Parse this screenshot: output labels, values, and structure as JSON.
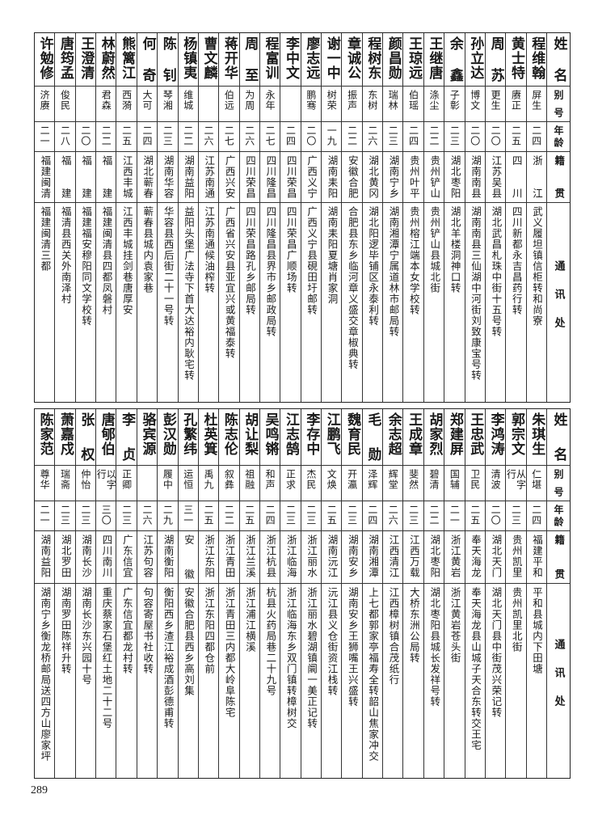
{
  "headers": {
    "name": "姓名",
    "alias": "别号",
    "age": "年龄",
    "origin": "籍贯",
    "address": "通讯处"
  },
  "top_rows": [
    {
      "name": "程维翰",
      "alias": "屏生",
      "age": "二四",
      "origin": "浙江",
      "address": "武义履坦镇信柜转和尚寮"
    },
    {
      "name": "黄士特",
      "alias": "赓正",
      "age": "二五",
      "origin": "四川",
      "address": "四川新都永吉昌药行转"
    },
    {
      "name": "周苏",
      "alias": "更生",
      "age": "二〇",
      "origin": "江苏吴县",
      "address": "湖北武昌札珠中街十五号转"
    },
    {
      "name": "孙立达",
      "alias": "博文",
      "age": "二〇",
      "origin": "湖南南县",
      "address": "湖南南县三仙湖中河街刘致康宝号转"
    },
    {
      "name": "余鑫",
      "alias": "子彰",
      "age": "二三",
      "origin": "湖北枣阳",
      "address": "湖北羊楼洞神口转"
    },
    {
      "name": "王继唐",
      "alias": "涤尘",
      "age": "二二",
      "origin": "贵州铲山",
      "address": "贵州铲山县城北街"
    },
    {
      "name": "王琼远",
      "alias": "伯瑶",
      "age": "二四",
      "origin": "贵州叶平",
      "address": "贵州榕江端本女学校转"
    },
    {
      "name": "颜昌勋",
      "alias": "瑞林",
      "age": "二三",
      "origin": "湖南宁乡",
      "address": "湖南湘潭宁属道林市邮局转"
    },
    {
      "name": "程树东",
      "alias": "东树",
      "age": "二六",
      "origin": "湖北黄冈",
      "address": "湖北阳逻毕铺区永泰利转"
    },
    {
      "name": "章诚公",
      "alias": "振声",
      "age": "二二",
      "origin": "安徽合肥",
      "address": "合肥县东乡临河章义盛交章椒典转"
    },
    {
      "name": "谢一中",
      "alias": "树荣",
      "age": "一九",
      "origin": "湖南耒阳",
      "address": "湖南耒阳夏塘肖家洞"
    },
    {
      "name": "廖志远",
      "alias": "鹏骞",
      "age": "二〇",
      "origin": "广西义宁",
      "address": "广西义宁县硯田圩邮转"
    },
    {
      "name": "李中文",
      "alias": "",
      "age": "二四",
      "origin": "四川荣昌",
      "address": "四川荣昌广顺场转"
    },
    {
      "name": "程富训",
      "alias": "永年",
      "age": "二七",
      "origin": "四川隆昌",
      "address": "四川隆昌县界市乡邮政局转"
    },
    {
      "name": "周至",
      "alias": "为周",
      "age": "二六",
      "origin": "四川荣昌",
      "address": "四川荣昌路孔乡邮局转"
    },
    {
      "name": "蒋开华",
      "alias": "伯远",
      "age": "二七",
      "origin": "广西兴安",
      "address": "广西省兴安县亚宜兴或黄福泰转"
    },
    {
      "name": "曹文麟",
      "alias": "",
      "age": "二六",
      "origin": "江苏南通",
      "address": "江苏南通候油榨转"
    },
    {
      "name": "杨镇夷",
      "alias": "维城",
      "age": "二二",
      "origin": "湖南益阳",
      "address": "益阳头堡广法寺下首大达裕内耿宅转"
    },
    {
      "name": "陈钊",
      "alias": "琴湘",
      "age": "二三",
      "origin": "湖南华容",
      "address": "华容县西后街二十一号转"
    },
    {
      "name": "何奇",
      "alias": "大可",
      "age": "二四",
      "origin": "湖北蕲春",
      "address": "蕲春县城内袁家巷"
    },
    {
      "name": "熊篱江",
      "alias": "西漪",
      "age": "二五",
      "origin": "江西丰城",
      "address": "江西丰城挂剑巷唐厚安"
    },
    {
      "name": "林蔚然",
      "alias": "君森",
      "age": "二二",
      "origin": "福建",
      "address": "福建闽清县四都凤磐村"
    },
    {
      "name": "王澄清",
      "alias": "",
      "age": "二〇",
      "origin": "福建",
      "address": "福建福安穆阳同文学校转"
    },
    {
      "name": "唐筠孟",
      "alias": "俊民",
      "age": "二八",
      "origin": "福建",
      "address": "福清县西关外南泽村"
    },
    {
      "name": "许勉修",
      "alias": "济赓",
      "age": "二一",
      "origin": "福建闽清",
      "address": "福建闽清三都"
    }
  ],
  "bottom_rows": [
    {
      "name": "朱琪生",
      "alias": "仁堪",
      "age": "二四",
      "origin": "福建平和",
      "address": "平和县城内下田塘"
    },
    {
      "name": "郭宗文",
      "alias": "从字行",
      "age": "二三",
      "origin": "贵州凯里",
      "address": "贵州凯里北街"
    },
    {
      "name": "李鸿涛",
      "alias": "清波",
      "age": "二〇",
      "origin": "湖北天门",
      "address": "湖北天门县中街茂兴荣记转"
    },
    {
      "name": "王忠武",
      "alias": "卫民",
      "age": "二五",
      "origin": "奉天海龙",
      "address": "奉天海龙县山城子天合东转交王宅"
    },
    {
      "name": "郑建屏",
      "alias": "国辅",
      "age": "二一",
      "origin": "浙江黄岩",
      "address": "浙江黄岩苍头街"
    },
    {
      "name": "胡家烈",
      "alias": "碧清",
      "age": "二二",
      "origin": "湖北枣阳",
      "address": "湖北枣阳县城长发祥号转"
    },
    {
      "name": "王成章",
      "alias": "斐然",
      "age": "二三",
      "origin": "江西万载",
      "address": "大桥东洲公局转"
    },
    {
      "name": "余志超",
      "alias": "辉堂",
      "age": "二六",
      "origin": "江西清江",
      "address": "江西樟树镇合茂纸行"
    },
    {
      "name": "毛勋",
      "alias": "泽辉",
      "age": "二四",
      "origin": "湖南湘潭",
      "address": "上七都郭家亭福寿全转韶山焦家冲交"
    },
    {
      "name": "魏育民",
      "alias": "开瀛",
      "age": "二三",
      "origin": "湖南安乡",
      "address": "湖南安乡王狮嘴王兴盛转"
    },
    {
      "name": "江鹏飞",
      "alias": "文焕",
      "age": "二五",
      "origin": "湖南沅江",
      "address": "沅江县义仓街资江栈转"
    },
    {
      "name": "李存中",
      "alias": "杰民",
      "age": "二三",
      "origin": "浙江丽水",
      "address": "浙江丽水碧湖镇阛一美正记转"
    },
    {
      "name": "江志鹄",
      "alias": "正求",
      "age": "二三",
      "origin": "浙江临海",
      "address": "浙江临海东乡双门镇转樟树交"
    },
    {
      "name": "吴鸣锵",
      "alias": "和声",
      "age": "二四",
      "origin": "浙江杭县",
      "address": "杭县火药局巷二十九号"
    },
    {
      "name": "胡让梨",
      "alias": "祖融",
      "age": "二五",
      "origin": "浙江兰溪",
      "address": "浙江浦江横溪"
    },
    {
      "name": "陈志伦",
      "alias": "叙彝",
      "age": "二二",
      "origin": "浙江青田",
      "address": "浙江青田三内都大岭阜陈宅"
    },
    {
      "name": "杜英箕",
      "alias": "禹九",
      "age": "二五",
      "origin": "浙江东阳",
      "address": "浙江东阳四都仓前"
    },
    {
      "name": "孔繁纬",
      "alias": "运恒",
      "age": "三一",
      "origin": "安徽",
      "address": "安徽合肥县西乡高刘集"
    },
    {
      "name": "彭汉勋",
      "alias": "履中",
      "age": "二九",
      "origin": "湖南衡阳",
      "address": "衡阳西乡渣江裕成酒彭德甫转"
    },
    {
      "name": "骆宾源",
      "alias": "",
      "age": "二六",
      "origin": "江苏句容",
      "address": "句容寄屋书社收转"
    },
    {
      "name": "李贞",
      "alias": "正卿",
      "age": "二三",
      "origin": "广东信宜",
      "address": "广东信宜都龙村转"
    },
    {
      "name": "唐郇伯",
      "alias": "以字行",
      "age": "三〇",
      "origin": "四川南川",
      "address": "重庆蔡家石堡红土地二十二号"
    },
    {
      "name": "张权",
      "alias": "仲怡",
      "age": "二三",
      "origin": "湖南长沙",
      "address": "湖南长沙东兴园十号"
    },
    {
      "name": "萧嘉戍",
      "alias": "瑞斋",
      "age": "二三",
      "origin": "湖北罗田",
      "address": "湖南罗田陈祥升转"
    },
    {
      "name": "陈家范",
      "alias": "尊华",
      "age": "二一",
      "origin": "湖南益阳",
      "address": "湖南宁乡衡龙桥邮局送四方山廖家坪"
    }
  ],
  "page_number": "289"
}
